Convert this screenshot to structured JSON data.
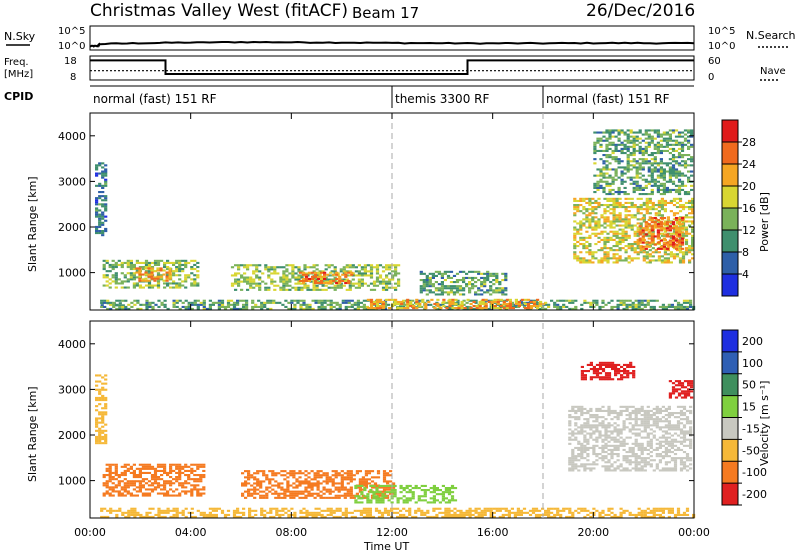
{
  "header": {
    "title": "Christmas Valley West (fitACF)",
    "beam": "Beam 17",
    "date": "26/Dec/2016"
  },
  "labels": {
    "nsky": "N.Sky",
    "nsearch": "N.Search",
    "freq": "Freq.",
    "freq_unit": "[MHz]",
    "nave": "Nave",
    "cpid": "CPID",
    "slant_range": "Slant Range [km]",
    "time_axis": "Time UT",
    "power_cbar": "Power [dB]",
    "velocity_cbar": "Velocity [m s⁻¹]"
  },
  "noise_ticks_left": [
    "10^5",
    "10^0"
  ],
  "noise_ticks_right": [
    "10^5",
    "10^0"
  ],
  "freq_ticks_left": [
    "18",
    "8"
  ],
  "freq_ticks_right": [
    "60",
    "0"
  ],
  "cpid_segments": [
    {
      "label": "normal (fast) 151 RF",
      "start": 0,
      "end": 12
    },
    {
      "label": "themis 3300 RF",
      "start": 12,
      "end": 18
    },
    {
      "label": "normal (fast) 151 RF",
      "start": 18,
      "end": 24
    }
  ],
  "range_ticks": [
    "1000",
    "2000",
    "3000",
    "4000"
  ],
  "time_ticks": [
    "00:00",
    "04:00",
    "08:00",
    "12:00",
    "16:00",
    "20:00",
    "00:00"
  ],
  "power_scale": [
    "4",
    "8",
    "12",
    "16",
    "20",
    "24",
    "28"
  ],
  "velocity_scale": [
    "200",
    "100",
    "50",
    "15",
    "-15",
    "-50",
    "-100",
    "-200"
  ],
  "colors": {
    "power": [
      "#1f2fe0",
      "#2e5fa8",
      "#3f8f6e",
      "#7ab25a",
      "#d8d632",
      "#f5a623",
      "#f06a1e",
      "#e01b1b"
    ],
    "velocity": [
      "#1f2fe0",
      "#2f5fb4",
      "#3f8f5e",
      "#7fcf3f",
      "#c8c8c0",
      "#f5b838",
      "#f57a20",
      "#e02020"
    ]
  },
  "chart_data": [
    {
      "type": "line",
      "title": "N.Sky / N.Search",
      "x_range": [
        0,
        24
      ],
      "y_scale": "log",
      "ylim": [
        1,
        100000
      ],
      "series": [
        {
          "name": "N.Sky",
          "x": [
            0,
            0.3,
            0.4,
            3,
            6,
            9,
            12,
            15,
            18,
            21,
            24
          ],
          "y": [
            3,
            3,
            10,
            20,
            30,
            25,
            18,
            15,
            15,
            18,
            15
          ]
        }
      ]
    },
    {
      "type": "line",
      "title": "Freq. / Nave",
      "x_range": [
        0,
        24
      ],
      "ylim_left": [
        8,
        18
      ],
      "ylim_right": [
        0,
        60
      ],
      "series": [
        {
          "name": "Freq.",
          "x": [
            0,
            3,
            3,
            15,
            15,
            24
          ],
          "y": [
            16.8,
            16.8,
            10.0,
            10.0,
            16.8,
            16.8
          ]
        },
        {
          "name": "Nave",
          "x": [
            0,
            24
          ],
          "y": [
            22,
            22
          ]
        }
      ]
    },
    {
      "type": "heatmap",
      "title": "Power",
      "xlabel": "Time UT",
      "ylabel": "Slant Range [km]",
      "x_range": [
        0,
        24
      ],
      "ylim": [
        180,
        4500
      ],
      "colorbar": {
        "label": "Power [dB]",
        "ticks": [
          4,
          8,
          12,
          16,
          20,
          24,
          28
        ]
      },
      "regions": [
        {
          "t": [
            0.3,
            1.3
          ],
          "r": [
            260,
            330
          ],
          "value": 10
        },
        {
          "t": [
            0.4,
            24
          ],
          "r": [
            180,
            400
          ],
          "value": 12
        },
        {
          "t": [
            0.5,
            4.3
          ],
          "r": [
            650,
            1250
          ],
          "value": 14
        },
        {
          "t": [
            1.8,
            3.2
          ],
          "r": [
            800,
            1100
          ],
          "value": 22
        },
        {
          "t": [
            5.6,
            12.3
          ],
          "r": [
            600,
            1150
          ],
          "value": 15
        },
        {
          "t": [
            8.3,
            10.4
          ],
          "r": [
            750,
            1000
          ],
          "value": 24
        },
        {
          "t": [
            11.0,
            18.0
          ],
          "r": [
            200,
            420
          ],
          "value": 22
        },
        {
          "t": [
            13.1,
            16.5
          ],
          "r": [
            500,
            1000
          ],
          "value": 12
        },
        {
          "t": [
            19.2,
            23.9
          ],
          "r": [
            1200,
            2600
          ],
          "value": 18
        },
        {
          "t": [
            21.8,
            23.6
          ],
          "r": [
            1500,
            2200
          ],
          "value": 26
        },
        {
          "t": [
            0.2,
            0.6
          ],
          "r": [
            1800,
            3400
          ],
          "value": 8
        },
        {
          "t": [
            20.0,
            23.9
          ],
          "r": [
            2700,
            4100
          ],
          "value": 12
        }
      ]
    },
    {
      "type": "heatmap",
      "title": "Velocity",
      "xlabel": "Time UT",
      "ylabel": "Slant Range [km]",
      "x_range": [
        0,
        24
      ],
      "ylim": [
        180,
        4500
      ],
      "colorbar": {
        "label": "Velocity [m s⁻¹]",
        "ticks": [
          200,
          100,
          50,
          15,
          -15,
          -50,
          -100,
          -200
        ]
      },
      "regions": [
        {
          "t": [
            0.4,
            24
          ],
          "r": [
            180,
            400
          ],
          "value": -20
        },
        {
          "t": [
            0.5,
            4.5
          ],
          "r": [
            650,
            1350
          ],
          "value": -60
        },
        {
          "t": [
            6.0,
            12.0
          ],
          "r": [
            600,
            1200
          ],
          "value": -60
        },
        {
          "t": [
            10.5,
            14.5
          ],
          "r": [
            500,
            900
          ],
          "value": 40
        },
        {
          "t": [
            19.0,
            23.9
          ],
          "r": [
            1200,
            2600
          ],
          "value": 0
        },
        {
          "t": [
            19.5,
            21.6
          ],
          "r": [
            3200,
            3600
          ],
          "value": -220
        },
        {
          "t": [
            23.0,
            23.9
          ],
          "r": [
            2800,
            3200
          ],
          "value": -150
        },
        {
          "t": [
            0.2,
            0.6
          ],
          "r": [
            1800,
            3400
          ],
          "value": -20
        }
      ]
    }
  ]
}
